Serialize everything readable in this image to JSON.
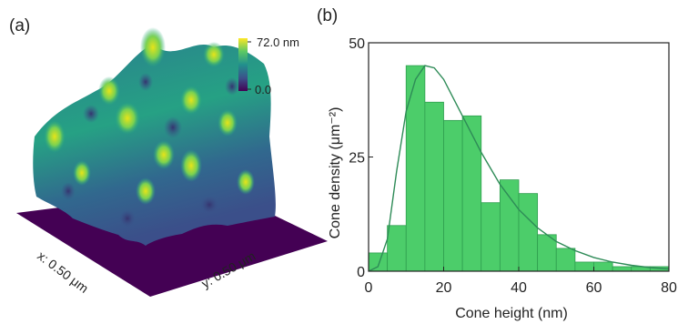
{
  "panel_a": {
    "label": "(a)",
    "x_axis_label": "x: 0.50 μm",
    "y_axis_label": "y: 0.50 μm",
    "colorbar": {
      "max_label": "72.0 nm",
      "min_label": "0.0",
      "colors": [
        "#440154",
        "#3b528b",
        "#21908d",
        "#5dc963",
        "#fde725"
      ]
    }
  },
  "panel_b": {
    "label": "(b)"
  },
  "chart_data": {
    "type": "bar",
    "bin_edges": [
      0,
      5,
      10,
      15,
      20,
      25,
      30,
      35,
      40,
      45,
      50,
      55,
      60,
      65,
      70,
      75,
      80
    ],
    "values": [
      4,
      10,
      45,
      37,
      33,
      34,
      15,
      20,
      17,
      8,
      5,
      2,
      2,
      1,
      1,
      1
    ],
    "fit_curve": {
      "x": [
        0,
        2.5,
        5,
        7.5,
        10,
        12.5,
        15,
        17.5,
        20,
        25,
        30,
        35,
        40,
        45,
        50,
        55,
        60,
        65,
        70,
        75,
        80
      ],
      "y": [
        0,
        1,
        7,
        22,
        35,
        42,
        45,
        44.5,
        42,
        34,
        26,
        19,
        13.5,
        9.5,
        6.5,
        4.5,
        3,
        2,
        1.3,
        0.8,
        0.5
      ]
    },
    "xlabel": "Cone height (nm)",
    "ylabel": "Cone density (μm⁻²)",
    "xlim": [
      0,
      80
    ],
    "ylim": [
      0,
      50
    ],
    "xticks": [
      0,
      20,
      40,
      60,
      80
    ],
    "yticks": [
      0,
      25,
      50
    ],
    "bar_color": "#4ccd6a",
    "curve_color": "#2e8b57",
    "grid": false
  }
}
